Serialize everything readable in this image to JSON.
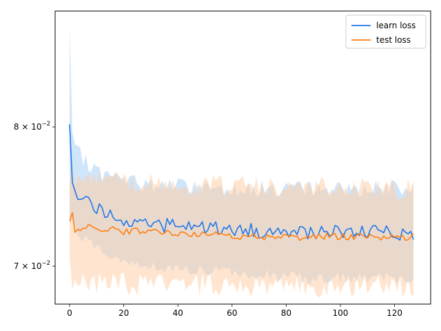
{
  "chart_data": {
    "type": "line",
    "title": "",
    "xlabel": "",
    "ylabel": "",
    "yscale": "log",
    "xlim": [
      -5.35,
      133.35
    ],
    "ylim": [
      0.0675,
      0.0894
    ],
    "xticks": [
      0,
      20,
      40,
      60,
      80,
      100,
      120
    ],
    "xtick_labels": [
      "0",
      "20",
      "40",
      "60",
      "80",
      "100",
      "120"
    ],
    "yticks": [
      0.07,
      0.08
    ],
    "ytick_labels": [
      {
        "mantissa": "7",
        "exp": "−2"
      },
      {
        "mantissa": "8",
        "exp": "−2"
      }
    ],
    "grid": false,
    "legend_position": "upper right",
    "series": [
      {
        "name": "learn loss",
        "color": "#1f77e8",
        "band_color": "#a8cff5",
        "knots_x": [
          0,
          1,
          2,
          5,
          8,
          12,
          16,
          20,
          30,
          40,
          55,
          70,
          90,
          110,
          127
        ],
        "knots_mean": [
          0.0802,
          0.0758,
          0.0752,
          0.0748,
          0.0744,
          0.0738,
          0.0734,
          0.0732,
          0.0729,
          0.0727,
          0.0726,
          0.0724,
          0.0723,
          0.0723,
          0.0722
        ],
        "knots_upper": [
          0.088,
          0.079,
          0.0782,
          0.0776,
          0.077,
          0.0765,
          0.0762,
          0.076,
          0.0757,
          0.0756,
          0.0755,
          0.0754,
          0.0754,
          0.0754,
          0.0754
        ],
        "knots_lower": [
          0.073,
          0.073,
          0.0725,
          0.072,
          0.0715,
          0.071,
          0.0706,
          0.0704,
          0.07,
          0.0698,
          0.0696,
          0.0694,
          0.0692,
          0.0692,
          0.0692
        ],
        "noise": [
          0.0005,
          0.0006,
          0.0004
        ]
      },
      {
        "name": "test loss",
        "color": "#ff7f0e",
        "band_color": "#ffd0a8",
        "knots_x": [
          0,
          1,
          2,
          5,
          8,
          12,
          16,
          20,
          30,
          40,
          55,
          70,
          90,
          110,
          127
        ],
        "knots_mean": [
          0.0731,
          0.0737,
          0.0723,
          0.0725,
          0.0728,
          0.0726,
          0.0725,
          0.0724,
          0.0723,
          0.0722,
          0.0721,
          0.072,
          0.072,
          0.072,
          0.072
        ],
        "knots_upper": [
          0.076,
          0.0775,
          0.0755,
          0.076,
          0.0764,
          0.0762,
          0.076,
          0.0758,
          0.0757,
          0.0756,
          0.0756,
          0.0755,
          0.0755,
          0.0754,
          0.0754
        ],
        "knots_lower": [
          0.07,
          0.069,
          0.0688,
          0.0688,
          0.0688,
          0.0688,
          0.0688,
          0.0688,
          0.0688,
          0.0688,
          0.0687,
          0.0687,
          0.0687,
          0.0687,
          0.0687
        ],
        "noise": [
          0.00025,
          0.0008,
          0.0008
        ]
      }
    ]
  }
}
